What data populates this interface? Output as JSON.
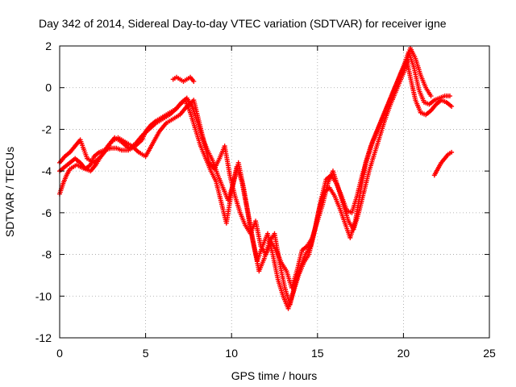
{
  "chart_data": {
    "type": "scatter",
    "title": "Day 342 of 2014, Sidereal Day-to-day VTEC variation (SDTVAR) for receiver igne",
    "xlabel": "GPS time / hours",
    "ylabel": "SDTVAR / TECUs",
    "xlim": [
      0,
      25
    ],
    "ylim": [
      -12,
      2
    ],
    "xticks": [
      "0",
      "5",
      "10",
      "15",
      "20",
      "25"
    ],
    "yticks": [
      "2",
      "0",
      "-2",
      "-4",
      "-6",
      "-8",
      "-10",
      "-12"
    ],
    "grid": true,
    "marker": "plus",
    "color": "#ff0000",
    "series": [
      {
        "x": [
          0.0,
          0.2,
          0.4,
          0.6,
          0.8,
          1.0,
          1.2,
          1.5,
          1.8,
          2.0,
          2.3,
          2.6,
          3.0,
          3.3,
          3.6,
          4.0,
          4.4,
          4.8,
          5.0,
          5.3,
          5.6,
          6.0,
          6.4,
          6.8,
          7.0,
          7.3,
          7.6,
          7.9,
          8.2,
          8.5,
          8.8,
          9.1,
          9.4,
          9.7,
          10.0,
          10.3,
          10.6,
          10.9,
          11.2,
          11.5,
          11.8,
          12.1,
          12.4,
          12.7,
          13.0,
          13.3,
          13.6,
          13.9,
          14.2,
          14.5,
          14.8,
          15.1,
          15.4,
          15.7,
          16.0,
          16.3,
          16.6,
          16.9,
          17.2,
          17.5,
          17.8,
          18.1,
          18.4,
          18.7,
          19.0,
          19.3,
          19.6,
          19.9,
          20.2,
          20.4,
          20.7,
          21.0,
          21.3,
          21.6,
          21.9,
          22.2,
          22.5,
          22.8
        ],
        "y": [
          -5.1,
          -4.6,
          -4.2,
          -3.9,
          -3.8,
          -3.7,
          -3.8,
          -3.9,
          -3.7,
          -3.3,
          -3.1,
          -3.0,
          -2.9,
          -2.9,
          -3.0,
          -3.0,
          -2.8,
          -2.5,
          -2.1,
          -1.8,
          -1.6,
          -1.4,
          -1.2,
          -1.0,
          -0.8,
          -0.6,
          -1.2,
          -2.0,
          -2.8,
          -3.4,
          -4.0,
          -4.5,
          -5.5,
          -6.5,
          -5.0,
          -3.8,
          -4.5,
          -5.8,
          -7.2,
          -8.3,
          -7.6,
          -7.0,
          -8.0,
          -9.2,
          -10.0,
          -10.6,
          -9.8,
          -9.0,
          -8.4,
          -8.0,
          -7.0,
          -5.8,
          -5.0,
          -4.8,
          -5.2,
          -5.8,
          -6.5,
          -7.2,
          -6.4,
          -5.0,
          -3.6,
          -2.8,
          -2.2,
          -1.6,
          -1.0,
          -0.4,
          0.2,
          0.8,
          1.3,
          0.5,
          -0.6,
          -1.2,
          -1.3,
          -1.1,
          -0.8,
          -0.6,
          -0.7,
          -0.9
        ]
      },
      {
        "x": [
          0.0,
          0.3,
          0.6,
          0.9,
          1.2,
          1.6,
          2.0,
          2.4,
          2.8,
          3.2,
          3.6,
          4.0,
          4.4,
          4.8,
          5.2,
          5.6,
          6.0,
          6.4,
          6.8,
          7.1,
          7.4,
          7.7,
          8.0,
          8.3,
          8.6,
          8.9,
          9.2,
          9.5,
          9.8,
          10.1,
          10.4,
          10.7,
          11.0,
          11.3,
          11.6,
          11.9,
          12.2,
          12.5,
          12.8,
          13.1,
          13.4,
          13.7,
          14.0,
          14.3,
          14.6,
          14.9,
          15.2,
          15.5,
          15.8,
          16.1,
          16.4,
          16.7,
          17.0,
          17.3,
          17.6,
          17.9,
          18.2,
          18.5,
          18.8,
          19.1,
          19.4,
          19.7,
          20.0,
          20.3,
          20.6,
          20.9,
          21.2,
          21.5,
          21.8,
          22.1,
          22.4,
          22.7
        ],
        "y": [
          -3.6,
          -3.3,
          -3.1,
          -2.8,
          -2.5,
          -3.4,
          -3.6,
          -3.3,
          -2.8,
          -2.4,
          -2.6,
          -2.9,
          -2.7,
          -2.3,
          -2.0,
          -1.7,
          -1.5,
          -1.3,
          -1.0,
          -0.7,
          -0.5,
          -0.9,
          -1.6,
          -2.4,
          -3.0,
          -3.5,
          -4.2,
          -4.8,
          -5.4,
          -4.6,
          -3.6,
          -4.8,
          -6.2,
          -7.6,
          -8.8,
          -8.2,
          -7.4,
          -7.0,
          -8.4,
          -9.6,
          -10.4,
          -9.4,
          -8.6,
          -8.0,
          -7.6,
          -6.6,
          -5.4,
          -4.4,
          -4.2,
          -4.6,
          -5.2,
          -5.9,
          -6.0,
          -5.2,
          -4.2,
          -3.4,
          -2.6,
          -2.0,
          -1.4,
          -0.8,
          -0.2,
          0.4,
          1.0,
          1.7,
          1.0,
          -0.1,
          -0.7,
          -0.8,
          -0.6,
          -0.5,
          -0.4,
          -0.4
        ]
      },
      {
        "x": [
          0.0,
          0.3,
          0.6,
          0.9,
          1.2,
          1.5,
          1.8,
          2.1,
          2.4,
          2.7,
          3.0,
          3.4,
          3.8,
          4.2,
          4.6,
          5.0,
          5.4,
          5.8,
          6.2,
          6.6,
          7.0,
          7.4,
          7.8,
          8.1,
          8.4,
          8.7,
          9.0,
          9.3,
          9.6,
          9.9,
          10.2,
          10.5,
          10.8,
          11.1,
          11.4,
          11.7,
          12.0,
          12.3,
          12.6,
          12.9,
          13.2,
          13.5,
          13.8,
          14.1,
          14.4,
          14.7,
          15.0,
          15.3,
          15.6,
          15.9,
          16.2,
          16.5,
          16.8,
          17.1,
          17.4,
          17.7,
          18.0,
          18.3,
          18.6,
          18.9,
          19.2,
          19.5,
          19.8,
          20.1,
          20.4,
          20.7,
          21.0,
          21.3,
          21.6
        ],
        "y": [
          -4.0,
          -3.8,
          -3.6,
          -3.4,
          -3.6,
          -3.9,
          -4.0,
          -3.7,
          -3.3,
          -3.0,
          -2.6,
          -2.4,
          -2.6,
          -2.8,
          -3.1,
          -3.3,
          -2.7,
          -2.1,
          -1.7,
          -1.5,
          -1.3,
          -0.9,
          -0.6,
          -1.6,
          -2.6,
          -3.6,
          -3.9,
          -3.4,
          -2.8,
          -4.2,
          -5.2,
          -6.0,
          -6.6,
          -7.0,
          -6.4,
          -7.6,
          -8.0,
          -7.4,
          -7.8,
          -8.4,
          -8.8,
          -9.6,
          -8.8,
          -7.8,
          -7.6,
          -7.2,
          -6.4,
          -5.6,
          -4.6,
          -4.0,
          -4.8,
          -5.6,
          -6.4,
          -6.8,
          -6.0,
          -5.0,
          -4.0,
          -3.2,
          -2.4,
          -1.6,
          -0.9,
          -0.3,
          0.3,
          0.9,
          1.9,
          1.4,
          0.6,
          0.0,
          -0.4
        ]
      },
      {
        "x": [
          6.6,
          6.8,
          7.0,
          7.2,
          7.4,
          7.6,
          7.8
        ],
        "y": [
          0.4,
          0.5,
          0.4,
          0.3,
          0.4,
          0.5,
          0.3
        ]
      },
      {
        "x": [
          21.8,
          22.0,
          22.2,
          22.4,
          22.6,
          22.8
        ],
        "y": [
          -4.2,
          -3.9,
          -3.6,
          -3.4,
          -3.2,
          -3.1
        ]
      }
    ]
  }
}
